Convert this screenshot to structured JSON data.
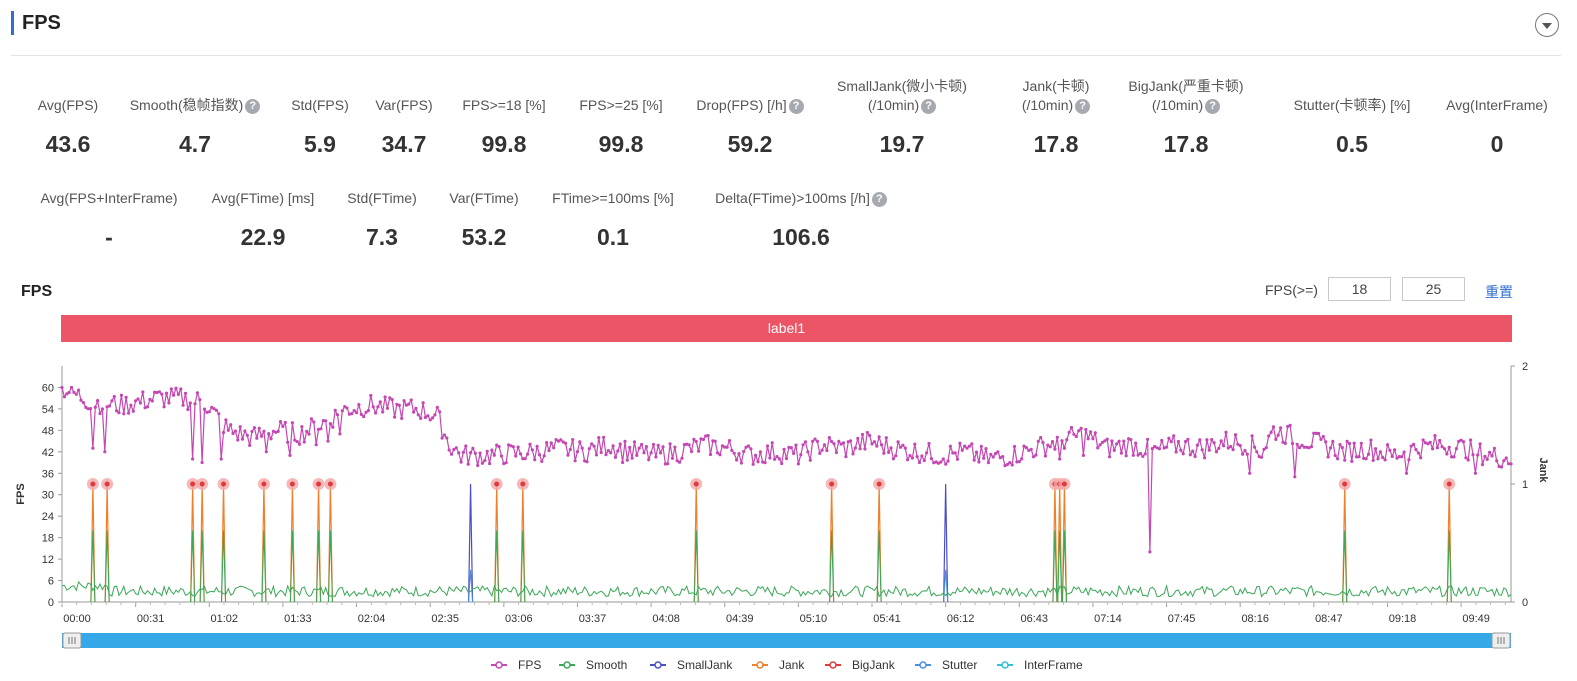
{
  "header": {
    "title": "FPS"
  },
  "metrics_row1": [
    {
      "label": "Avg(FPS)",
      "value": "43.6",
      "help": false
    },
    {
      "label": "Smooth(稳帧指数)",
      "value": "4.7",
      "help": true
    },
    {
      "label": "Std(FPS)",
      "value": "5.9",
      "help": false
    },
    {
      "label": "Var(FPS)",
      "value": "34.7",
      "help": false
    },
    {
      "label": "FPS>=18 [%]",
      "value": "99.8",
      "help": false
    },
    {
      "label": "FPS>=25 [%]",
      "value": "99.8",
      "help": false
    },
    {
      "label": "Drop(FPS) [/h]",
      "value": "59.2",
      "help": true
    },
    {
      "label": "SmallJank(微小卡顿)",
      "label2": "(/10min)",
      "value": "19.7",
      "help": true
    },
    {
      "label": "Jank(卡顿)",
      "label2": "(/10min)",
      "value": "17.8",
      "help": true
    },
    {
      "label": "BigJank(严重卡顿)",
      "label2": "(/10min)",
      "value": "17.8",
      "help": true
    },
    {
      "label": "Stutter(卡顿率) [%]",
      "value": "0.5",
      "help": false
    },
    {
      "label": "Avg(InterFrame)",
      "value": "0",
      "help": false
    }
  ],
  "metrics_row2": [
    {
      "label": "Avg(FPS+InterFrame)",
      "value": "-",
      "help": false
    },
    {
      "label": "Avg(FTime) [ms]",
      "value": "22.9",
      "help": false
    },
    {
      "label": "Std(FTime)",
      "value": "7.3",
      "help": false
    },
    {
      "label": "Var(FTime)",
      "value": "53.2",
      "help": false
    },
    {
      "label": "FTime>=100ms [%]",
      "value": "0.1",
      "help": false
    },
    {
      "label": "Delta(FTime)>100ms [/h]",
      "value": "106.6",
      "help": true
    }
  ],
  "help_glyph": "?",
  "chart_section": {
    "title": "FPS",
    "threshold_label": "FPS(>=)",
    "threshold_values": [
      "18",
      "25"
    ],
    "reset_label": "重置",
    "band_label": "label1"
  },
  "colors": {
    "FPS": "#c348b3",
    "Smooth": "#3aa757",
    "SmallJank": "#4a4fc9",
    "Jank": "#ef7f2a",
    "BigJank": "#e0393e",
    "Stutter": "#4a90e2",
    "InterFrame": "#2ec4d6",
    "band": "#ec5566",
    "slider": "#35a8e8"
  },
  "chart_data": {
    "type": "line",
    "ylabel": "FPS",
    "y2label": "Jank",
    "ylim": [
      0,
      66
    ],
    "y_ticks": [
      0,
      6,
      12,
      18,
      24,
      30,
      36,
      42,
      48,
      54,
      60
    ],
    "y2_ticks": [
      0,
      1,
      2
    ],
    "x_ticks": [
      "00:00",
      "00:31",
      "01:02",
      "01:33",
      "02:04",
      "02:35",
      "03:06",
      "03:37",
      "04:08",
      "04:39",
      "05:10",
      "05:41",
      "06:12",
      "06:43",
      "07:14",
      "07:45",
      "08:16",
      "08:47",
      "09:18",
      "09:49"
    ],
    "x_range_seconds": [
      0,
      610
    ],
    "legend": [
      "FPS",
      "Smooth",
      "SmallJank",
      "Jank",
      "BigJank",
      "Stutter",
      "InterFrame"
    ],
    "fps_profile": [
      [
        0,
        60
      ],
      [
        12,
        56
      ],
      [
        25,
        55
      ],
      [
        40,
        57
      ],
      [
        50,
        57
      ],
      [
        60,
        56
      ],
      [
        70,
        48
      ],
      [
        80,
        46
      ],
      [
        90,
        48
      ],
      [
        100,
        47
      ],
      [
        110,
        50
      ],
      [
        120,
        54
      ],
      [
        130,
        55
      ],
      [
        140,
        54
      ],
      [
        150,
        54
      ],
      [
        158,
        52
      ],
      [
        163,
        44
      ],
      [
        168,
        41
      ],
      [
        180,
        41
      ],
      [
        200,
        42
      ],
      [
        210,
        43
      ],
      [
        220,
        42
      ],
      [
        230,
        44
      ],
      [
        240,
        42
      ],
      [
        250,
        41
      ],
      [
        260,
        42
      ],
      [
        270,
        44
      ],
      [
        280,
        43
      ],
      [
        290,
        41
      ],
      [
        300,
        42
      ],
      [
        310,
        41
      ],
      [
        320,
        44
      ],
      [
        330,
        43
      ],
      [
        340,
        45
      ],
      [
        350,
        43
      ],
      [
        360,
        42
      ],
      [
        370,
        41
      ],
      [
        380,
        42
      ],
      [
        390,
        40
      ],
      [
        400,
        41
      ],
      [
        410,
        43
      ],
      [
        420,
        45
      ],
      [
        430,
        47
      ],
      [
        440,
        43
      ],
      [
        450,
        44
      ],
      [
        460,
        42
      ],
      [
        470,
        44
      ],
      [
        480,
        43
      ],
      [
        490,
        45
      ],
      [
        500,
        44
      ],
      [
        505,
        42
      ],
      [
        510,
        48
      ],
      [
        520,
        46
      ],
      [
        530,
        44
      ],
      [
        540,
        42
      ],
      [
        550,
        43
      ],
      [
        560,
        41
      ],
      [
        570,
        43
      ],
      [
        580,
        44
      ],
      [
        590,
        43
      ],
      [
        600,
        41
      ],
      [
        610,
        40
      ]
    ],
    "fps_dips": [
      [
        13,
        43
      ],
      [
        18,
        42
      ],
      [
        55,
        40
      ],
      [
        59,
        39
      ],
      [
        67,
        40
      ],
      [
        86,
        42
      ],
      [
        96,
        41
      ],
      [
        107,
        44
      ],
      [
        112,
        45
      ],
      [
        117,
        47
      ],
      [
        236,
        39
      ],
      [
        420,
        40
      ],
      [
        430,
        41
      ],
      [
        458,
        14
      ],
      [
        500,
        36
      ],
      [
        519,
        35
      ],
      [
        566,
        36
      ],
      [
        595,
        36
      ]
    ],
    "smooth_level": 3,
    "jank_events": [
      {
        "t": 13,
        "type": "BigJank"
      },
      {
        "t": 19,
        "type": "BigJank"
      },
      {
        "t": 55,
        "type": "BigJank"
      },
      {
        "t": 59,
        "type": "BigJank"
      },
      {
        "t": 68,
        "type": "BigJank"
      },
      {
        "t": 85,
        "type": "BigJank"
      },
      {
        "t": 97,
        "type": "BigJank"
      },
      {
        "t": 108,
        "type": "BigJank"
      },
      {
        "t": 113,
        "type": "BigJank"
      },
      {
        "t": 172,
        "type": "SmallJank"
      },
      {
        "t": 183,
        "type": "BigJank"
      },
      {
        "t": 194,
        "type": "BigJank"
      },
      {
        "t": 267,
        "type": "BigJank"
      },
      {
        "t": 324,
        "type": "BigJank"
      },
      {
        "t": 344,
        "type": "BigJank"
      },
      {
        "t": 372,
        "type": "SmallJank"
      },
      {
        "t": 418,
        "type": "BigJank"
      },
      {
        "t": 420,
        "type": "BigJank"
      },
      {
        "t": 422,
        "type": "BigJank"
      },
      {
        "t": 540,
        "type": "BigJank"
      },
      {
        "t": 584,
        "type": "BigJank"
      }
    ],
    "grid": false
  }
}
